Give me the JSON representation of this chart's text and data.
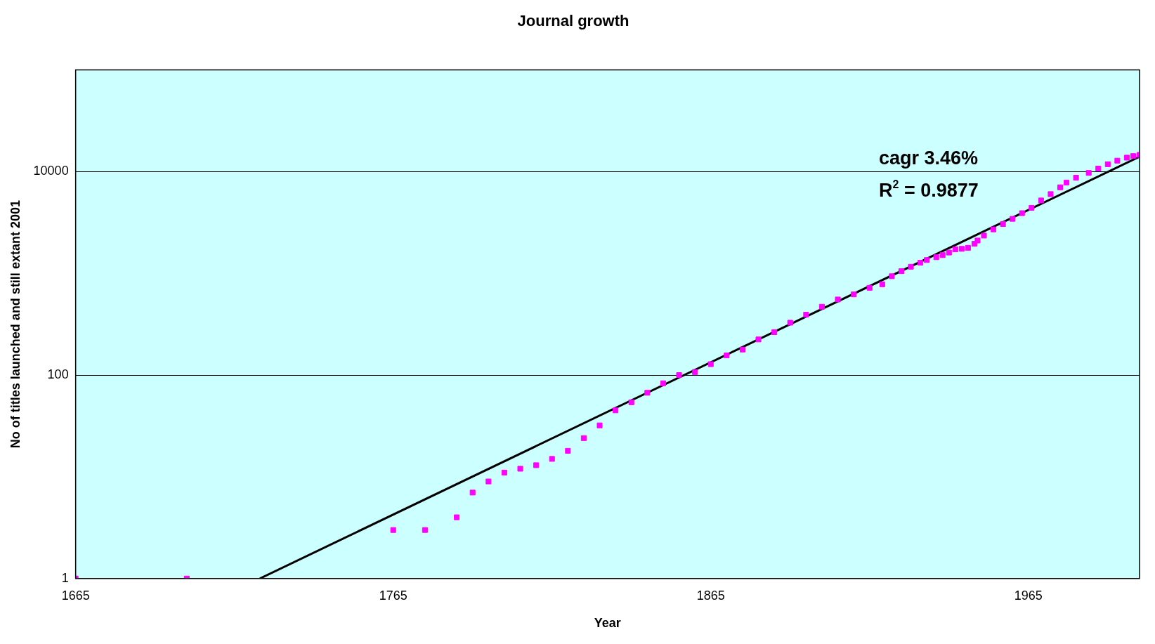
{
  "chart_data": {
    "type": "scatter",
    "title": "Journal growth",
    "xlabel": "Year",
    "ylabel": "No of titles launched and still extant 2001",
    "annotations": [
      "cagr 3.46%",
      "R$^{2}$ = 0.9877"
    ],
    "log": "y",
    "xlim": [
      1665,
      2000
    ],
    "xticks": [
      1665,
      1765,
      1865,
      1965
    ],
    "ylim": [
      1,
      100000
    ],
    "yticks": [
      1,
      100,
      10000
    ],
    "grid": "y",
    "legend": false,
    "series": [
      {
        "marker": "square",
        "color": "#ff00ff",
        "x": [
          1665,
          1700,
          1765,
          1775,
          1785,
          1790,
          1795,
          1800,
          1805,
          1810,
          1815,
          1820,
          1825,
          1830,
          1835,
          1840,
          1845,
          1850,
          1855,
          1860,
          1865,
          1870,
          1875,
          1880,
          1885,
          1890,
          1895,
          1900,
          1905,
          1910,
          1915,
          1919,
          1922,
          1925,
          1928,
          1931,
          1933,
          1936,
          1938,
          1940,
          1942,
          1944,
          1946,
          1948,
          1949,
          1951,
          1954,
          1957,
          1960,
          1963,
          1966,
          1969,
          1972,
          1975,
          1977,
          1980,
          1984,
          1987,
          1990,
          1993,
          1996,
          1998,
          2000
        ],
        "values": [
          1,
          1,
          3,
          3,
          4,
          7,
          9,
          11,
          12,
          13,
          15,
          18,
          24,
          32,
          45,
          54,
          67,
          83,
          100,
          107,
          128,
          156,
          178,
          224,
          264,
          327,
          392,
          469,
          553,
          621,
          720,
          780,
          936,
          1050,
          1160,
          1270,
          1350,
          1440,
          1510,
          1600,
          1720,
          1740,
          1780,
          1950,
          2100,
          2350,
          2700,
          3050,
          3430,
          3900,
          4400,
          5200,
          6000,
          7000,
          7800,
          8700,
          9700,
          10700,
          11800,
          12800,
          13700,
          14200,
          14600
        ]
      },
      {
        "type": "line",
        "marker": "none",
        "color": "#000000",
        "x": [
          1723,
          2000
        ],
        "values": [
          1,
          14000
        ]
      }
    ]
  }
}
